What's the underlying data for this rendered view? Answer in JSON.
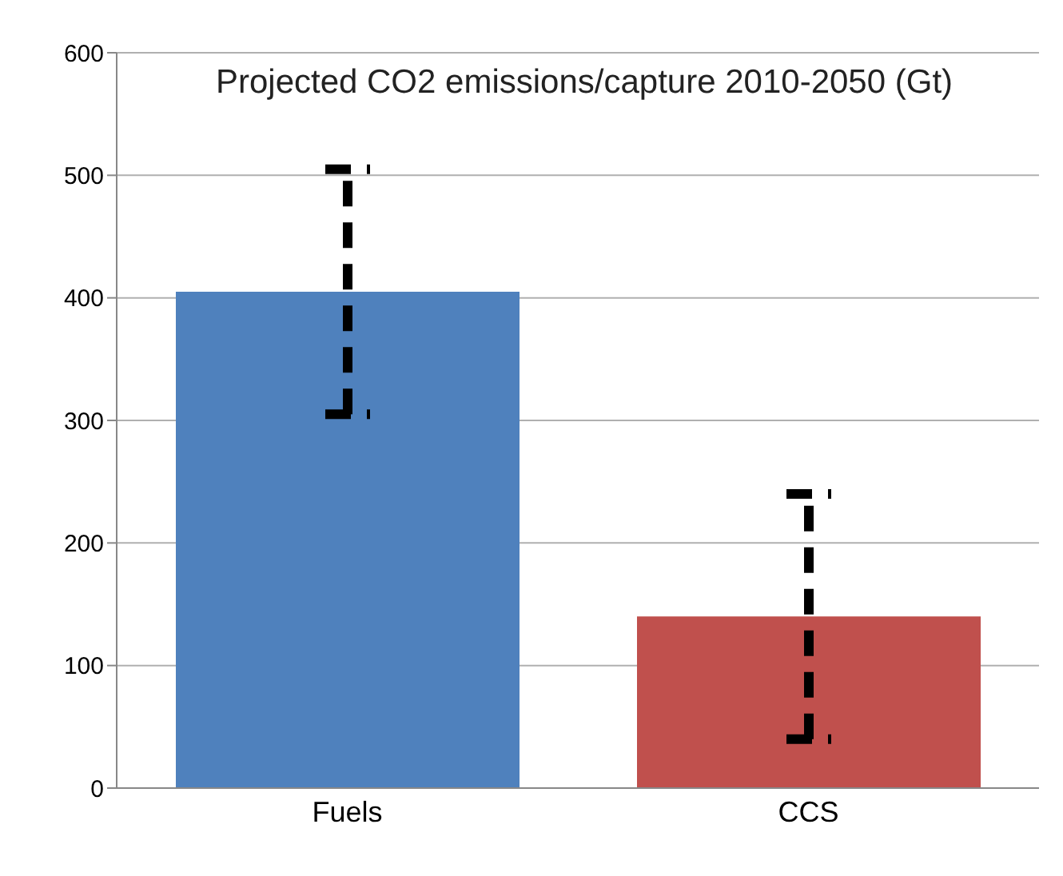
{
  "chart_data": {
    "type": "bar",
    "title": "Projected CO2 emissions/capture 2010-2050 (Gt)",
    "categories": [
      "Fuels",
      "CCS"
    ],
    "values": [
      405,
      140
    ],
    "colors": [
      "#4f81bd",
      "#c0504d"
    ],
    "errors": [
      100,
      100
    ],
    "ylim": [
      0,
      600
    ],
    "yticks": [
      0,
      100,
      200,
      300,
      400,
      500,
      600
    ],
    "grid": "y"
  }
}
